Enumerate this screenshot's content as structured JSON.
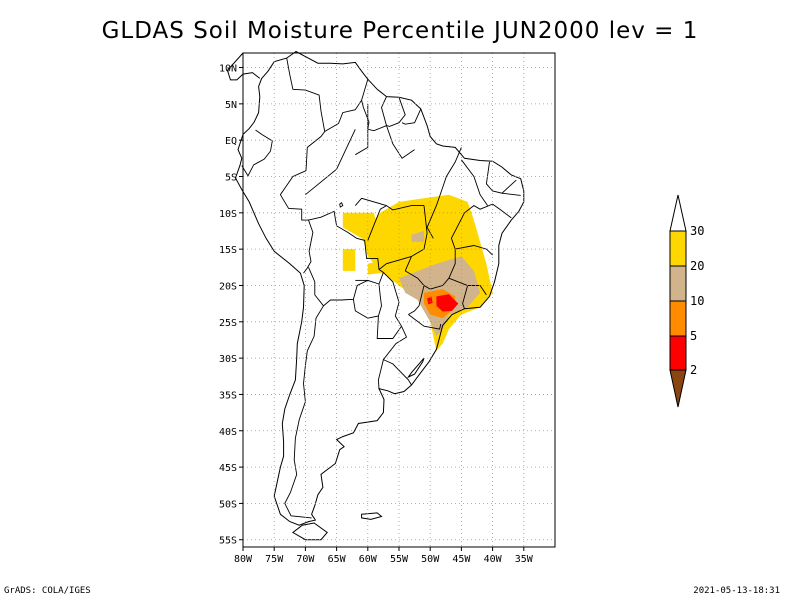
{
  "title": "GLDAS Soil Moisture Percentile JUN2000 lev = 1",
  "footer": {
    "left": "GrADS: COLA/IGES",
    "right": "2021-05-13-18:31"
  },
  "map": {
    "lon_range": [
      -80,
      -30
    ],
    "lat_range": [
      -56,
      12
    ],
    "lat_ticks": [
      {
        "value": 10,
        "label": "10N"
      },
      {
        "value": 5,
        "label": "5N"
      },
      {
        "value": 0,
        "label": "EQ"
      },
      {
        "value": -5,
        "label": "5S"
      },
      {
        "value": -10,
        "label": "10S"
      },
      {
        "value": -15,
        "label": "15S"
      },
      {
        "value": -20,
        "label": "20S"
      },
      {
        "value": -25,
        "label": "25S"
      },
      {
        "value": -30,
        "label": "30S"
      },
      {
        "value": -35,
        "label": "35S"
      },
      {
        "value": -40,
        "label": "40S"
      },
      {
        "value": -45,
        "label": "45S"
      },
      {
        "value": -50,
        "label": "50S"
      },
      {
        "value": -55,
        "label": "55S"
      }
    ],
    "lon_ticks": [
      {
        "value": -80,
        "label": "80W"
      },
      {
        "value": -75,
        "label": "75W"
      },
      {
        "value": -70,
        "label": "70W"
      },
      {
        "value": -65,
        "label": "65W"
      },
      {
        "value": -60,
        "label": "60W"
      },
      {
        "value": -55,
        "label": "55W"
      },
      {
        "value": -50,
        "label": "50W"
      },
      {
        "value": -45,
        "label": "45W"
      },
      {
        "value": -40,
        "label": "40W"
      },
      {
        "value": -35,
        "label": "35W"
      }
    ],
    "grid": true,
    "projection": "lat-lon"
  },
  "legend": {
    "placement": "right",
    "bins": [
      {
        "label": "2",
        "color": "#8B4513"
      },
      {
        "label": "5",
        "color": "#ff0000"
      },
      {
        "label": "10",
        "color": "#ff8c00"
      },
      {
        "label": "20",
        "color": "#d2b48c"
      },
      {
        "label": "30",
        "color": "#ffd700"
      },
      {
        "label": "",
        "color": "#ffffff"
      }
    ],
    "colors": {
      "below_2": "#8B4513",
      "2_to_5": "#ff0000",
      "5_to_10": "#ff8c00",
      "10_to_20": "#d2b48c",
      "20_to_30": "#ffd700",
      "above_30": "#ffffff"
    }
  },
  "colors": {
    "gold": "#ffd700",
    "tan": "#d2b48c",
    "orange": "#ff8c00",
    "red": "#ff0000",
    "brown": "#8B4513"
  }
}
